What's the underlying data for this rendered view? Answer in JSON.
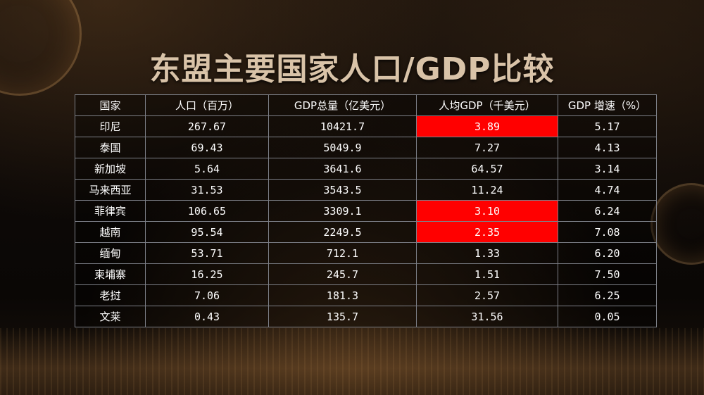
{
  "title": "东盟主要国家人口/GDP比较",
  "chart_data": {
    "type": "table",
    "columns": [
      "国家",
      "人口（百万）",
      "GDP总量（亿美元）",
      "人均GDP（千美元）",
      "GDP 增速（%）"
    ],
    "rows": [
      {
        "country": "印尼",
        "population": "267.67",
        "gdp": "10421.7",
        "gdp_per_capita": "3.89",
        "growth": "5.17",
        "highlight": true
      },
      {
        "country": "泰国",
        "population": "69.43",
        "gdp": "5049.9",
        "gdp_per_capita": "7.27",
        "growth": "4.13",
        "highlight": false
      },
      {
        "country": "新加坡",
        "population": "5.64",
        "gdp": "3641.6",
        "gdp_per_capita": "64.57",
        "growth": "3.14",
        "highlight": false
      },
      {
        "country": "马来西亚",
        "population": "31.53",
        "gdp": "3543.5",
        "gdp_per_capita": "11.24",
        "growth": "4.74",
        "highlight": false
      },
      {
        "country": "菲律宾",
        "population": "106.65",
        "gdp": "3309.1",
        "gdp_per_capita": "3.10",
        "growth": "6.24",
        "highlight": true
      },
      {
        "country": "越南",
        "population": "95.54",
        "gdp": "2249.5",
        "gdp_per_capita": "2.35",
        "growth": "7.08",
        "highlight": true
      },
      {
        "country": "缅甸",
        "population": "53.71",
        "gdp": "712.1",
        "gdp_per_capita": "1.33",
        "growth": "6.20",
        "highlight": false
      },
      {
        "country": "柬埔寨",
        "population": "16.25",
        "gdp": "245.7",
        "gdp_per_capita": "1.51",
        "growth": "7.50",
        "highlight": false
      },
      {
        "country": "老挝",
        "population": "7.06",
        "gdp": "181.3",
        "gdp_per_capita": "2.57",
        "growth": "6.25",
        "highlight": false
      },
      {
        "country": "文莱",
        "population": "0.43",
        "gdp": "135.7",
        "gdp_per_capita": "31.56",
        "growth": "0.05",
        "highlight": false
      }
    ]
  },
  "colors": {
    "highlight": "#ff0000",
    "title": "#d9c3a8",
    "grid": "#7d8088"
  }
}
